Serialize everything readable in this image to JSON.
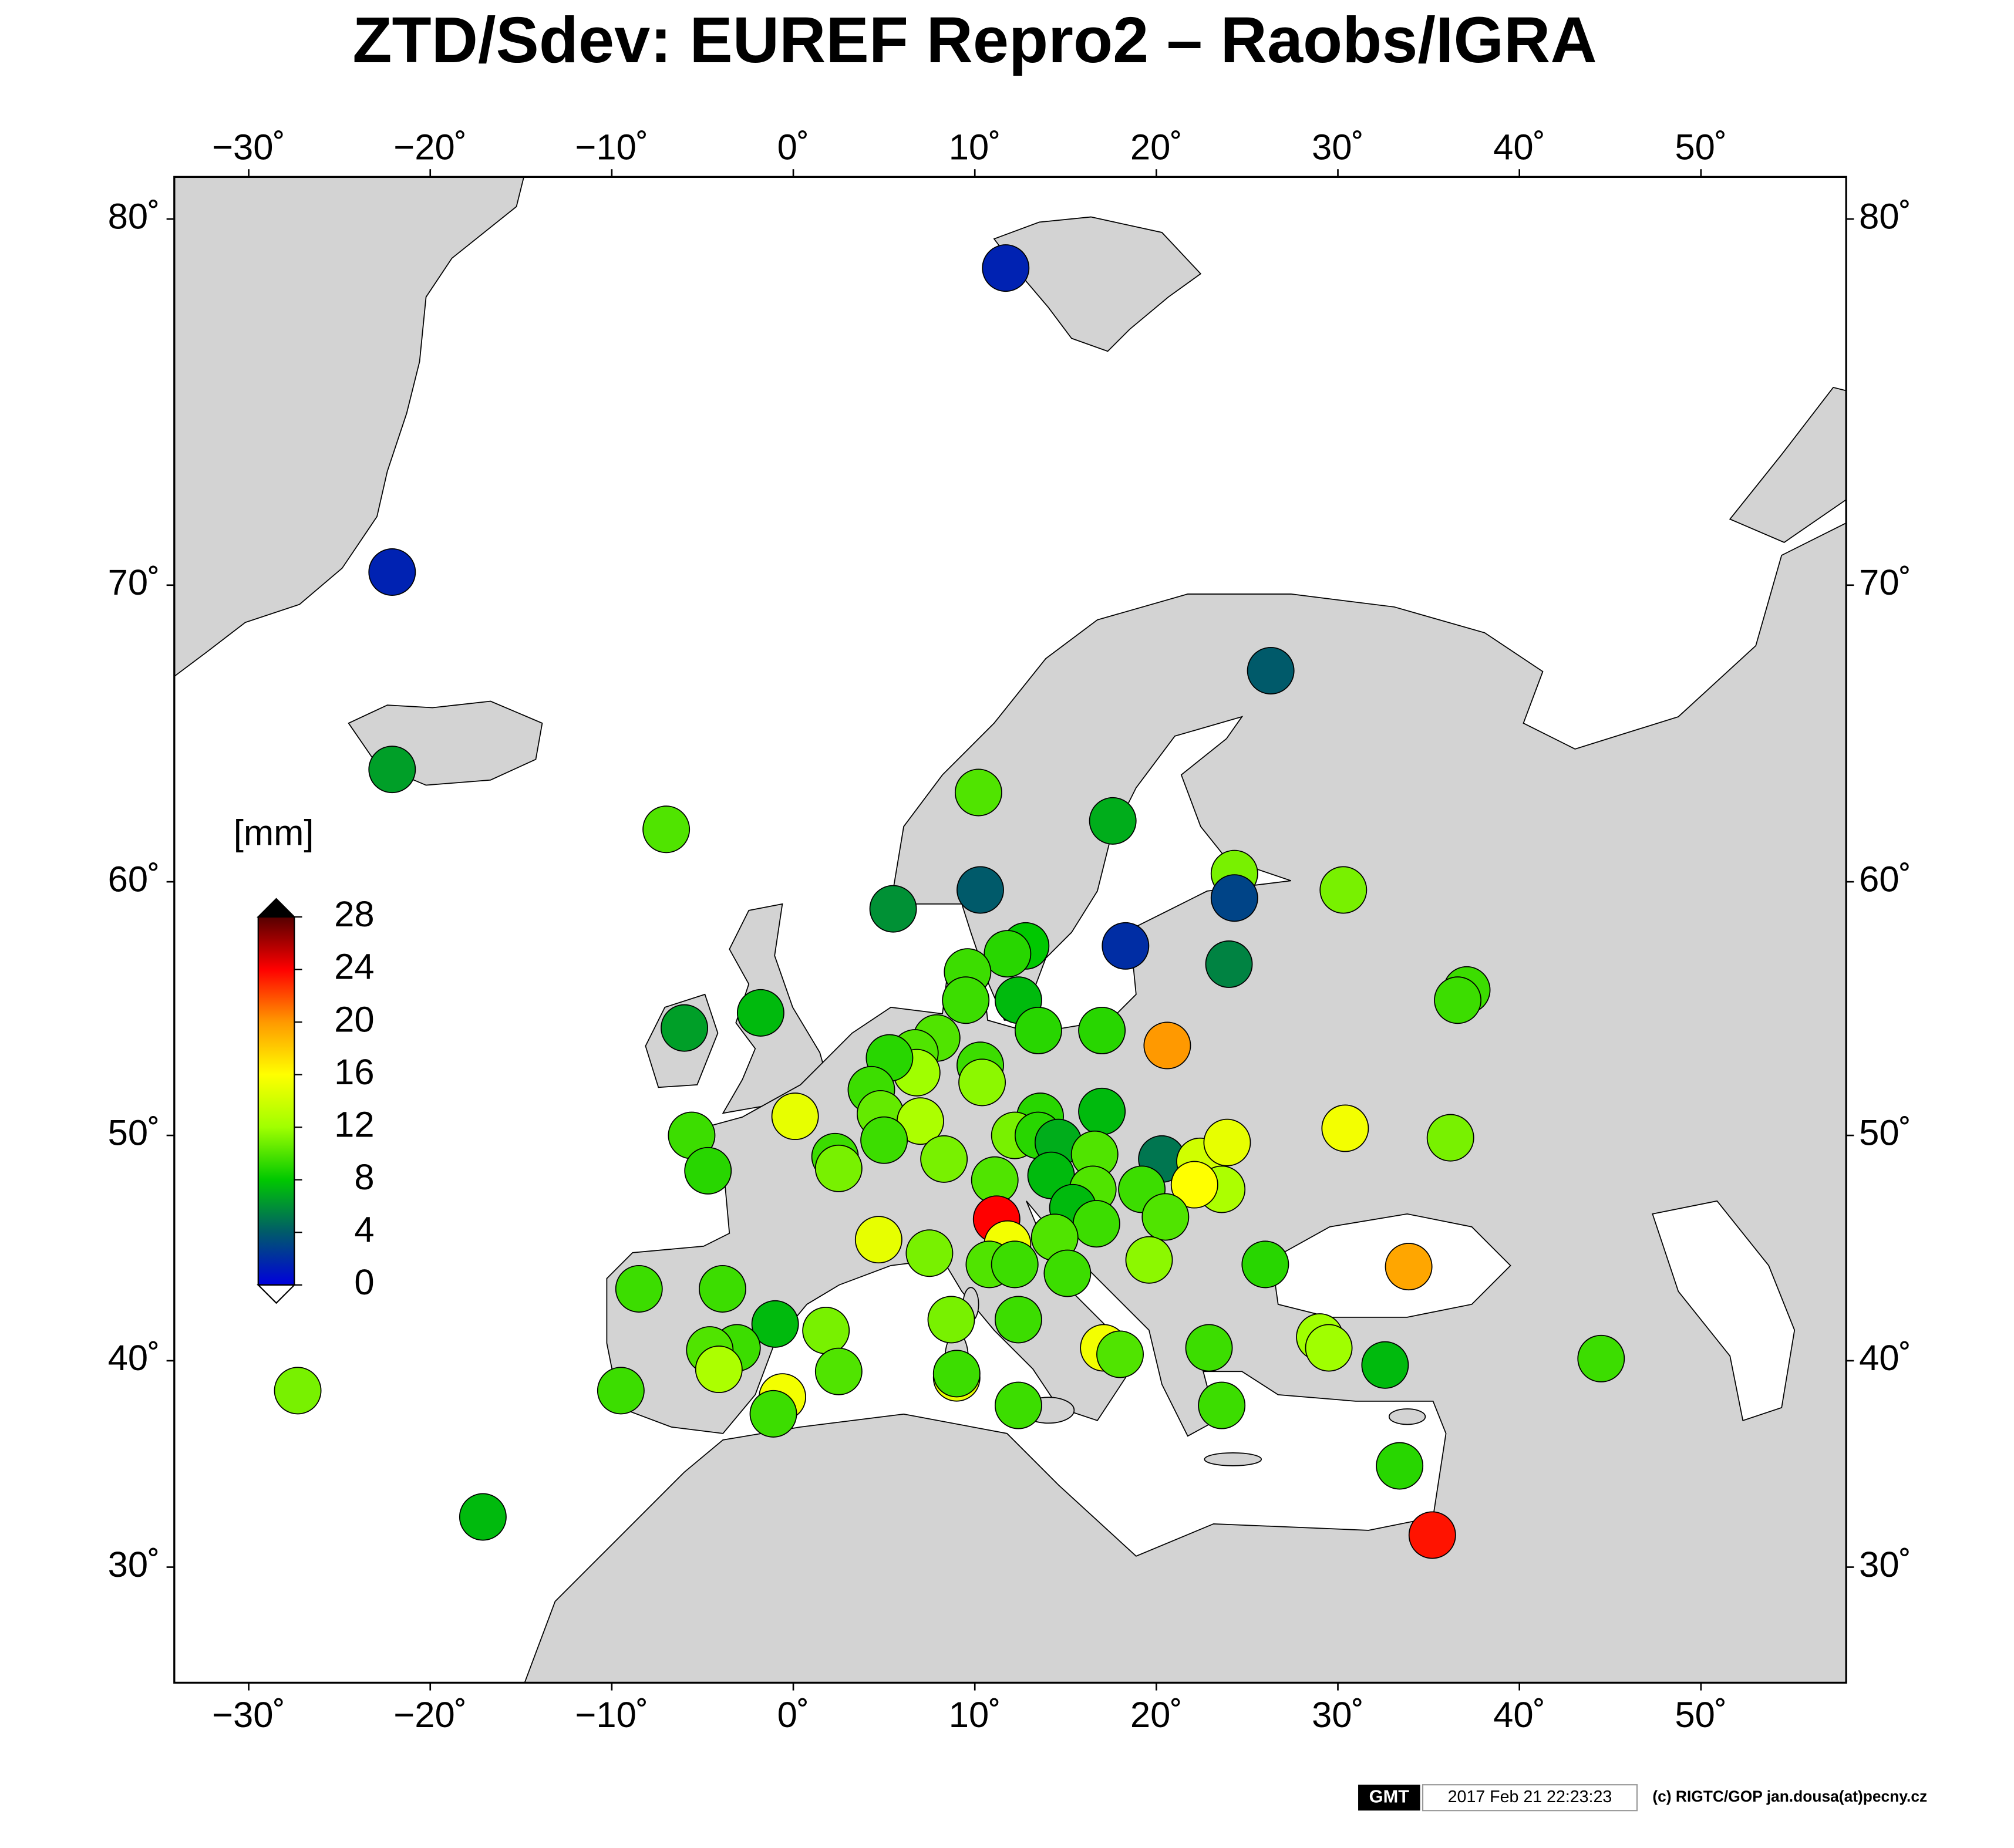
{
  "chart_data": {
    "type": "map",
    "title": "ZTD/Sdev:  EUREF Repro2 – Raobs/IGRA",
    "xlim": [
      -34.1,
      58.0
    ],
    "ylim": [
      24.1,
      81.0
    ],
    "xticks": [
      {
        "value": -30,
        "label": "−30˚"
      },
      {
        "value": -20,
        "label": "−20˚"
      },
      {
        "value": -10,
        "label": "−10˚"
      },
      {
        "value": 0,
        "label": "0˚"
      },
      {
        "value": 10,
        "label": "10˚"
      },
      {
        "value": 20,
        "label": "20˚"
      },
      {
        "value": 30,
        "label": "30˚"
      },
      {
        "value": 40,
        "label": "40˚"
      },
      {
        "value": 50,
        "label": "50˚"
      }
    ],
    "yticks": [
      {
        "value": 30,
        "label": "30˚"
      },
      {
        "value": 40,
        "label": "40˚"
      },
      {
        "value": 50,
        "label": "50˚"
      },
      {
        "value": 60,
        "label": "60˚"
      },
      {
        "value": 70,
        "label": "70˚"
      },
      {
        "value": 80,
        "label": "80˚"
      }
    ],
    "lon": [
      11.7,
      -22.1,
      -22.1,
      -7.0,
      10.2,
      17.6,
      5.5,
      10.3,
      24.3,
      24.3,
      30.3,
      26.3,
      18.3,
      24.0,
      37.1,
      36.6,
      12.8,
      11.8,
      9.6,
      9.5,
      12.4,
      13.5,
      17.0,
      20.6,
      -1.8,
      -6.0,
      7.9,
      6.7,
      6.8,
      5.3,
      10.3,
      10.4,
      4.3,
      0.1,
      4.8,
      7.0,
      5.0,
      17.0,
      13.6,
      12.2,
      13.5,
      14.6,
      16.6,
      20.3,
      22.4,
      23.9,
      30.4,
      36.2,
      -5.6,
      -4.7,
      2.3,
      2.5,
      8.3,
      11.1,
      14.2,
      16.5,
      19.2,
      23.6,
      22.1,
      20.5,
      15.4,
      16.7,
      11.2,
      11.8,
      14.4,
      4.7,
      7.5,
      10.8,
      12.2,
      15.1,
      19.6,
      26.0,
      33.9,
      -8.5,
      -3.9,
      -1.0,
      1.8,
      8.7,
      12.4,
      -3.1,
      -4.6,
      -4.1,
      2.5,
      17.1,
      18.0,
      22.9,
      29.0,
      29.5,
      32.6,
      44.5,
      -9.5,
      -0.6,
      -1.1,
      9.0,
      9.0,
      12.4,
      23.6,
      33.4,
      35.2,
      -27.3,
      -17.1
    ],
    "lat": [
      78.8,
      70.4,
      64.0,
      61.9,
      63.2,
      62.2,
      59.0,
      59.7,
      60.3,
      59.4,
      59.7,
      67.3,
      57.6,
      56.9,
      55.9,
      55.5,
      57.6,
      57.3,
      56.6,
      55.5,
      55.5,
      54.3,
      54.3,
      53.7,
      55.0,
      54.4,
      54.0,
      53.4,
      52.6,
      53.2,
      52.9,
      52.2,
      51.9,
      50.8,
      50.9,
      50.6,
      49.8,
      51.0,
      50.8,
      50.0,
      50.0,
      49.7,
      49.2,
      49.0,
      48.9,
      49.7,
      50.3,
      49.9,
      50.0,
      48.5,
      49.1,
      48.6,
      49.0,
      48.1,
      48.3,
      47.7,
      47.7,
      47.7,
      47.9,
      46.5,
      46.9,
      46.2,
      46.4,
      45.3,
      45.6,
      45.5,
      44.9,
      44.4,
      44.4,
      44.0,
      44.6,
      44.4,
      44.3,
      43.3,
      43.3,
      41.7,
      41.4,
      41.9,
      41.9,
      40.6,
      40.5,
      39.6,
      39.5,
      40.6,
      40.3,
      40.6,
      41.1,
      40.6,
      39.8,
      40.1,
      38.6,
      38.3,
      37.5,
      39.2,
      39.4,
      37.9,
      37.9,
      35.0,
      31.6,
      38.6,
      32.5
    ],
    "values": [
      1.5,
      1.5,
      6.5,
      10,
      10,
      7,
      6,
      4,
      11,
      3,
      11,
      4,
      2,
      5.5,
      9.5,
      9.5,
      8,
      9,
      9.5,
      9.5,
      7.5,
      9,
      9,
      20,
      7.5,
      6.5,
      10,
      10,
      12,
      9,
      9.5,
      11.5,
      9.5,
      15,
      10.5,
      12.5,
      9.5,
      7.5,
      9,
      11,
      9,
      7,
      10,
      5,
      14,
      15,
      15.5,
      11,
      9.5,
      9,
      9.5,
      11,
      11,
      10,
      7.5,
      10,
      9.5,
      12.5,
      16,
      10,
      7.5,
      9.5,
      24,
      15.5,
      10,
      15,
      11,
      10,
      9.5,
      9.5,
      11.5,
      9,
      19.5,
      9.5,
      9.5,
      7.5,
      11,
      11,
      9.5,
      9.5,
      10,
      12.5,
      10,
      15.5,
      10,
      9.5,
      12,
      12,
      7.5,
      9.5,
      9.5,
      15.5,
      9.5,
      15,
      9.5,
      9.5,
      9.5,
      9,
      23.5,
      11,
      7.5
    ],
    "colorbar": {
      "label": "[mm]",
      "lim": [
        0,
        28
      ],
      "ticks": [
        0,
        4,
        8,
        12,
        16,
        20,
        24,
        28
      ],
      "colors": [
        "#0000dd",
        "#005a6a",
        "#00c800",
        "#a0ff00",
        "#ffff00",
        "#ff9900",
        "#ff0000",
        "#550000"
      ],
      "over_color": "#000000",
      "under_color": "#ffffff"
    }
  },
  "footer": {
    "logo": "GMT",
    "timestamp": "2017 Feb 21 22:23:23",
    "credit": "(c) RIGTC/GOP jan.dousa(at)pecny.cz"
  }
}
